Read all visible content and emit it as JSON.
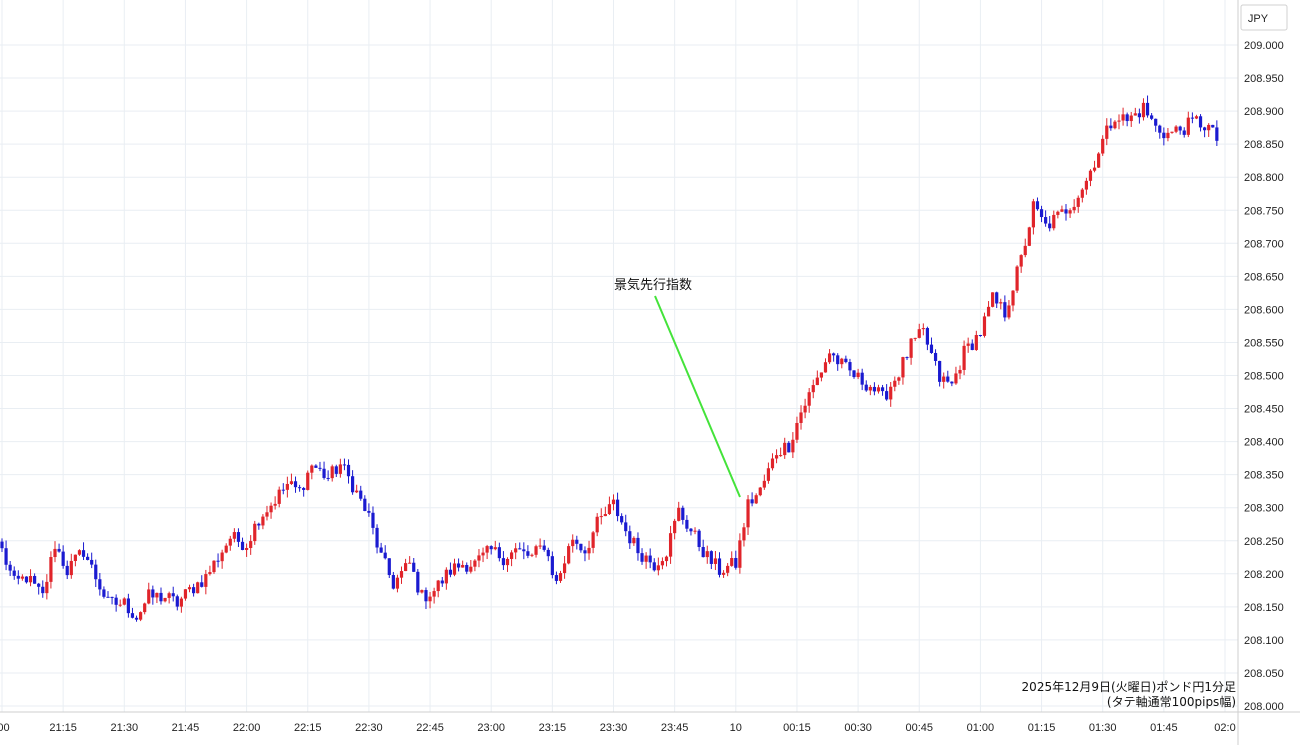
{
  "chart_data": {
    "type": "candlestick",
    "currency_label": "JPY",
    "annotation": "景気先行指数",
    "caption_line1": "2025年12月9日(火曜日)ポンド円1分足",
    "caption_line2": "(タテ軸通常100pips幅)",
    "ylim": [
      208.0,
      209.0
    ],
    "y_ticks": [
      "209.000",
      "208.950",
      "208.900",
      "208.850",
      "208.800",
      "208.750",
      "208.700",
      "208.650",
      "208.600",
      "208.550",
      "208.500",
      "208.450",
      "208.400",
      "208.350",
      "208.300",
      "208.250",
      "208.200",
      "208.150",
      "208.100",
      "208.050",
      "208.000"
    ],
    "x_ticks": [
      ":00",
      "21:15",
      "21:30",
      "21:45",
      "22:00",
      "22:15",
      "22:30",
      "22:45",
      "23:00",
      "23:15",
      "23:30",
      "23:45",
      "10",
      "00:15",
      "00:30",
      "00:45",
      "01:00",
      "01:15",
      "01:30",
      "01:45",
      "02:0"
    ],
    "up_color": "#e0242a",
    "down_color": "#1a1ad0",
    "annotation_line_color": "#44e33a",
    "price_path": [
      [
        0,
        208.235
      ],
      [
        3,
        208.185
      ],
      [
        6,
        208.195
      ],
      [
        10,
        208.165
      ],
      [
        13,
        208.245
      ],
      [
        16,
        208.205
      ],
      [
        20,
        208.235
      ],
      [
        23,
        208.195
      ],
      [
        26,
        208.155
      ],
      [
        30,
        208.155
      ],
      [
        33,
        208.135
      ],
      [
        36,
        208.165
      ],
      [
        40,
        208.165
      ],
      [
        43,
        208.155
      ],
      [
        46,
        208.175
      ],
      [
        50,
        208.195
      ],
      [
        53,
        208.225
      ],
      [
        56,
        208.255
      ],
      [
        60,
        208.245
      ],
      [
        63,
        208.285
      ],
      [
        66,
        208.305
      ],
      [
        70,
        208.335
      ],
      [
        73,
        208.325
      ],
      [
        76,
        208.365
      ],
      [
        80,
        208.345
      ],
      [
        83,
        208.365
      ],
      [
        86,
        208.335
      ],
      [
        90,
        208.285
      ],
      [
        93,
        208.225
      ],
      [
        96,
        208.185
      ],
      [
        100,
        208.215
      ],
      [
        103,
        208.165
      ],
      [
        106,
        208.175
      ],
      [
        110,
        208.205
      ],
      [
        113,
        208.215
      ],
      [
        116,
        208.215
      ],
      [
        120,
        208.235
      ],
      [
        123,
        208.225
      ],
      [
        126,
        208.235
      ],
      [
        130,
        208.225
      ],
      [
        133,
        208.245
      ],
      [
        136,
        208.185
      ],
      [
        140,
        208.255
      ],
      [
        143,
        208.235
      ],
      [
        146,
        208.275
      ],
      [
        150,
        208.305
      ],
      [
        153,
        208.265
      ],
      [
        156,
        208.235
      ],
      [
        160,
        208.215
      ],
      [
        163,
        208.235
      ],
      [
        166,
        208.295
      ],
      [
        170,
        208.255
      ],
      [
        173,
        208.225
      ],
      [
        176,
        208.205
      ],
      [
        180,
        208.215
      ],
      [
        183,
        208.305
      ],
      [
        186,
        208.325
      ],
      [
        190,
        208.385
      ],
      [
        193,
        208.395
      ],
      [
        196,
        208.445
      ],
      [
        200,
        208.495
      ],
      [
        203,
        208.535
      ],
      [
        206,
        208.515
      ],
      [
        210,
        208.495
      ],
      [
        213,
        208.485
      ],
      [
        216,
        208.465
      ],
      [
        220,
        208.505
      ],
      [
        223,
        208.545
      ],
      [
        226,
        208.565
      ],
      [
        230,
        208.495
      ],
      [
        233,
        208.485
      ],
      [
        236,
        208.535
      ],
      [
        240,
        208.565
      ],
      [
        243,
        208.615
      ],
      [
        246,
        208.595
      ],
      [
        250,
        208.675
      ],
      [
        253,
        208.755
      ],
      [
        256,
        208.725
      ],
      [
        260,
        208.745
      ],
      [
        263,
        208.765
      ],
      [
        266,
        208.795
      ],
      [
        270,
        208.855
      ],
      [
        273,
        208.895
      ],
      [
        276,
        208.885
      ],
      [
        280,
        208.905
      ],
      [
        283,
        208.875
      ],
      [
        286,
        208.865
      ],
      [
        290,
        208.875
      ],
      [
        293,
        208.885
      ],
      [
        296,
        208.875
      ],
      [
        298,
        208.855
      ]
    ]
  }
}
